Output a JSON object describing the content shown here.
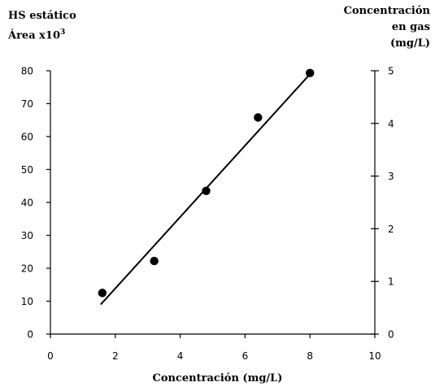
{
  "chart_data": {
    "type": "scatter",
    "title": "",
    "ylabel_left_line1": "HS estático",
    "ylabel_left_line2": "Área x10",
    "ylabel_left_exp": "3",
    "ylabel_right_lines": [
      "Concentración",
      "en gas",
      "(mg/L)"
    ],
    "xlabel": "Concentración (mg/L)",
    "xlim": [
      0,
      10
    ],
    "ylim_left": [
      0,
      80
    ],
    "ylim_right": [
      0,
      5
    ],
    "x_ticks": [
      "0",
      "2",
      "4",
      "6",
      "8",
      "10"
    ],
    "y_left_ticks": [
      "0",
      "10",
      "20",
      "30",
      "40",
      "50",
      "60",
      "70",
      "80"
    ],
    "y_right_ticks": [
      "0",
      "1",
      "2",
      "3",
      "4",
      "5"
    ],
    "grid": false,
    "legend": "none",
    "series": [
      {
        "points": [
          {
            "x": 1.6,
            "y": 12.5
          },
          {
            "x": 3.2,
            "y": 22.2
          },
          {
            "x": 4.8,
            "y": 43.5
          },
          {
            "x": 6.4,
            "y": 65.8
          },
          {
            "x": 8.0,
            "y": 79.3
          }
        ]
      }
    ],
    "fit_line": {
      "x": [
        1.55,
        8.05
      ],
      "y": [
        9.0,
        79.5
      ]
    },
    "marker_color": "#000000",
    "line_color": "#000000"
  }
}
